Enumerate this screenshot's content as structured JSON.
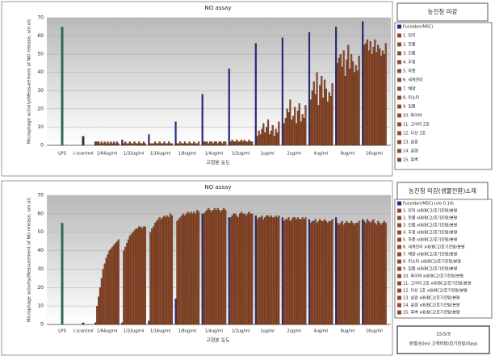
{
  "chart_data": [
    {
      "type": "bar",
      "title": "NO assay",
      "panel_title": "농진청 미강",
      "y_label": "Microphage activity(Measurement of NO release, um.ol)",
      "x_label": "고형분 농도",
      "ylim": [
        0,
        70
      ],
      "yticks": [
        0,
        10,
        20,
        30,
        40,
        50,
        60,
        70
      ],
      "grid": true,
      "controls": [
        {
          "name": "LPS",
          "value": 65,
          "color": "#2e6b4a"
        },
        {
          "name": "(-)control",
          "value": 5,
          "color": "#2b3a2e"
        }
      ],
      "categories": [
        "1/64ug/ml",
        "1/32ug/ml",
        "1/16ug/ml",
        "1/8ug/ml",
        "1/4ug/ml",
        "1/2ug/ml",
        "1ug/ml",
        "2ug/ml",
        "4ug/ml",
        "8ug/ml",
        "16ug/ml"
      ],
      "series": [
        {
          "name": "Fucoidan(MSC)",
          "color": "#1f2a8f",
          "values": [
            2,
            3,
            6,
            13,
            28,
            42,
            56,
            59,
            62,
            65,
            68
          ]
        },
        {
          "name": "1. 단미",
          "color": "#8b4a2b",
          "values": [
            2,
            1,
            1,
            1,
            2,
            2,
            5,
            12,
            25,
            45,
            55
          ]
        },
        {
          "name": "2. 한품",
          "color": "#8b4a2b",
          "values": [
            2,
            2,
            1,
            1,
            2,
            3,
            8,
            15,
            30,
            48,
            56
          ]
        },
        {
          "name": "3. 진품",
          "color": "#8b4a2b",
          "values": [
            1,
            1,
            1,
            2,
            2,
            2,
            6,
            20,
            35,
            50,
            58
          ]
        },
        {
          "name": "4. 추청",
          "color": "#8b4a2b",
          "values": [
            2,
            1,
            2,
            1,
            1,
            2,
            9,
            18,
            28,
            43,
            52
          ]
        },
        {
          "name": "5. 하풍",
          "color": "#8b4a2b",
          "values": [
            1,
            2,
            1,
            1,
            2,
            3,
            12,
            25,
            40,
            52,
            57
          ]
        },
        {
          "name": "6. 세계진미",
          "color": "#8b4a2b",
          "values": [
            2,
            1,
            1,
            2,
            2,
            2,
            7,
            14,
            22,
            38,
            50
          ]
        },
        {
          "name": "7. 해양",
          "color": "#8b4a2b",
          "values": [
            1,
            1,
            2,
            1,
            1,
            2,
            10,
            16,
            33,
            47,
            54
          ]
        },
        {
          "name": "8. 미소미",
          "color": "#8b4a2b",
          "values": [
            2,
            2,
            1,
            1,
            2,
            3,
            14,
            21,
            38,
            55,
            58
          ]
        },
        {
          "name": "9. 일품",
          "color": "#8b4a2b",
          "values": [
            1,
            1,
            1,
            2,
            2,
            2,
            6,
            12,
            26,
            42,
            51
          ]
        },
        {
          "name": "10. 화이바",
          "color": "#8b4a2b",
          "values": [
            2,
            1,
            2,
            1,
            1,
            3,
            8,
            19,
            36,
            50,
            55
          ]
        },
        {
          "name": "11. 고아미 2호",
          "color": "#8b4a2b",
          "values": [
            1,
            2,
            1,
            1,
            2,
            2,
            11,
            23,
            31,
            46,
            53
          ]
        },
        {
          "name": "12. 다산 1호",
          "color": "#8b4a2b",
          "values": [
            2,
            1,
            1,
            2,
            2,
            2,
            5,
            13,
            24,
            40,
            49
          ]
        },
        {
          "name": "13. 삼광",
          "color": "#8b4a2b",
          "values": [
            1,
            1,
            2,
            1,
            1,
            3,
            9,
            17,
            29,
            44,
            52
          ]
        },
        {
          "name": "14. 설갱",
          "color": "#8b4a2b",
          "values": [
            2,
            2,
            1,
            1,
            2,
            2,
            7,
            15,
            27,
            41,
            50
          ]
        },
        {
          "name": "15. 흑벽",
          "color": "#8b4a2b",
          "values": [
            1,
            1,
            1,
            2,
            2,
            2,
            13,
            22,
            34,
            49,
            56
          ]
        }
      ]
    },
    {
      "type": "bar",
      "title": "NO assay",
      "panel_title": "농진청 미강(생물전환)소재",
      "y_label": "Microphage activity(Measurement of NO release, um.ol)",
      "x_label": "고형분 농도",
      "ylim": [
        0,
        70
      ],
      "yticks": [
        0,
        10,
        20,
        30,
        40,
        50,
        60,
        70
      ],
      "grid": true,
      "note": [
        "15/5/9",
        "분말/50ml 고액비량/호기진탕/flask"
      ],
      "controls": [
        {
          "name": "LPS",
          "value": 55,
          "color": "#2e6b4a"
        },
        {
          "name": "(-)control",
          "value": 1,
          "color": "#2b3a2e"
        }
      ],
      "categories": [
        "1/64ug/ml",
        "1/32ug/ml",
        "1/16ug/ml",
        "1/8ug/ml",
        "1/4ug/ml",
        "1/2ug/ml",
        "1ug/ml",
        "2ug/ml",
        "4ug/ml",
        "8ug/ml",
        "16ug/ml"
      ],
      "series": [
        {
          "name": "Fucoidan(MSC) (vio 0.14)",
          "color": "#1f2a8f",
          "values": [
            1,
            1,
            2,
            14,
            60,
            58,
            59,
            58,
            57,
            58,
            57
          ]
        },
        {
          "name": "1. 단미 xi8/BC2/호기진탕/분말",
          "color": "#8b4a2b",
          "values": [
            10,
            40,
            50,
            56,
            60,
            58,
            57,
            56,
            55,
            55,
            56
          ]
        },
        {
          "name": "2. 한품 xi8/BC2/호기진탕/분말",
          "color": "#8b4a2b",
          "values": [
            15,
            42,
            52,
            57,
            61,
            59,
            58,
            57,
            56,
            54,
            55
          ]
        },
        {
          "name": "3. 진품 xi8/BC2/호기진탕/분말",
          "color": "#8b4a2b",
          "values": [
            20,
            44,
            53,
            58,
            62,
            60,
            58,
            57,
            56,
            55,
            57
          ]
        },
        {
          "name": "4. 추청 xi8/BC2/호기진탕/분말",
          "color": "#8b4a2b",
          "values": [
            25,
            46,
            55,
            59,
            63,
            60,
            59,
            58,
            57,
            56,
            56
          ]
        },
        {
          "name": "5. 하풍 xi8/BC2/호기진탕/분말",
          "color": "#8b4a2b",
          "values": [
            30,
            48,
            56,
            60,
            62,
            59,
            57,
            56,
            55,
            54,
            55
          ]
        },
        {
          "name": "6. 세계진미 xi8/BC2/호기진탕/분말",
          "color": "#8b4a2b",
          "values": [
            33,
            49,
            57,
            59,
            61,
            58,
            58,
            57,
            56,
            55,
            56
          ]
        },
        {
          "name": "7. 해양 xi8/BC2/호기진탕/분말",
          "color": "#8b4a2b",
          "values": [
            36,
            50,
            58,
            60,
            62,
            60,
            59,
            58,
            57,
            56,
            57
          ]
        },
        {
          "name": "8. 미소미 xi8/BC2/호기진탕/분말",
          "color": "#8b4a2b",
          "values": [
            38,
            51,
            57,
            61,
            63,
            61,
            59,
            58,
            56,
            55,
            55
          ]
        },
        {
          "name": "9. 일품 xi8/BC2/호기진탕/분말",
          "color": "#8b4a2b",
          "values": [
            40,
            52,
            58,
            60,
            62,
            60,
            58,
            57,
            56,
            55,
            54
          ]
        },
        {
          "name": "10. 화이바 xi8/BC2/호기진탕/분말",
          "color": "#8b4a2b",
          "values": [
            41,
            52,
            59,
            61,
            63,
            60,
            59,
            58,
            57,
            56,
            56
          ]
        },
        {
          "name": "11. 고아미 2호 xi8/BC2/호기진탕/분말",
          "color": "#8b4a2b",
          "values": [
            42,
            53,
            58,
            60,
            62,
            59,
            58,
            57,
            56,
            55,
            55
          ]
        },
        {
          "name": "12. 다산 1호 xi8/BC2/호기진탕/분말",
          "color": "#8b4a2b",
          "values": [
            43,
            53,
            59,
            61,
            61,
            60,
            58,
            57,
            55,
            54,
            54
          ]
        },
        {
          "name": "13. 삼광 xi8/BC2/호기진탕/분말",
          "color": "#8b4a2b",
          "values": [
            44,
            52,
            58,
            60,
            62,
            61,
            59,
            58,
            56,
            55,
            55
          ]
        },
        {
          "name": "14. 설갱 xi8/BC2/호기진탕/분말",
          "color": "#8b4a2b",
          "values": [
            45,
            53,
            60,
            62,
            63,
            60,
            58,
            57,
            56,
            55,
            56
          ]
        },
        {
          "name": "15. 흑벽 xi8/BC2/호기진탕/분말",
          "color": "#8b4a2b",
          "values": [
            46,
            53,
            59,
            61,
            62,
            60,
            59,
            58,
            57,
            56,
            55
          ]
        }
      ]
    }
  ]
}
